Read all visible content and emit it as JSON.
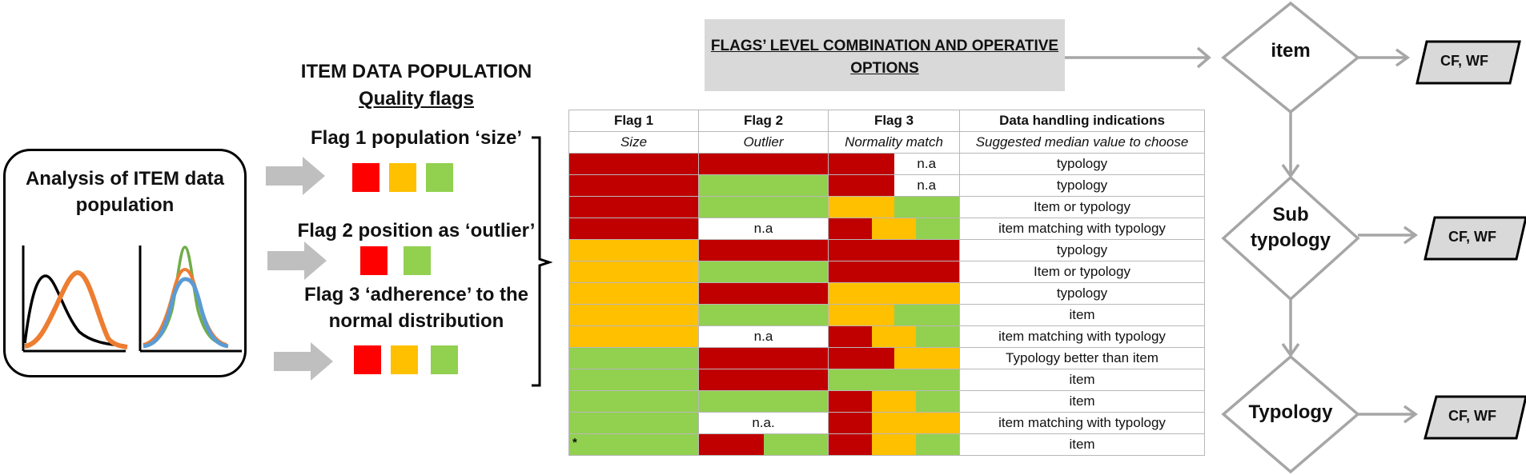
{
  "analysis": {
    "title": "Analysis of ITEM data population"
  },
  "population": {
    "title": "ITEM DATA POPULATION",
    "subtitle": "Quality flags",
    "flag1": {
      "label": "Flag 1 population ‘size’",
      "swatches": [
        "#ff0000",
        "#ffc000",
        "#92d050"
      ]
    },
    "flag2": {
      "label": "Flag 2 position as ‘outlier’",
      "swatches": [
        "#ff0000",
        "#92d050"
      ]
    },
    "flag3": {
      "label": "Flag 3 ‘adherence’ to the normal distribution",
      "swatches": [
        "#ff0000",
        "#ffc000",
        "#92d050"
      ]
    }
  },
  "banner": {
    "text": "FLAGS’ LEVEL COMBINATION AND OPERATIVE OPTIONS"
  },
  "colors": {
    "red": "#c00000",
    "yellow": "#ffc000",
    "green": "#92d050",
    "white": "#ffffff"
  },
  "table": {
    "headers": [
      "Flag 1",
      "Flag 2",
      "Flag 3",
      "Data handling indications"
    ],
    "subheaders": [
      "Size",
      "Outlier",
      "Normality match",
      "Suggested median value to choose"
    ],
    "rows": [
      {
        "f1": [
          "red"
        ],
        "f2": [
          "red"
        ],
        "f3": [
          "red",
          "white"
        ],
        "f3_text": "n.a",
        "handling": "typology"
      },
      {
        "f1": [
          "red"
        ],
        "f2": [
          "green"
        ],
        "f3": [
          "red",
          "white"
        ],
        "f3_text": "n.a",
        "handling": "typology"
      },
      {
        "f1": [
          "red"
        ],
        "f2": [
          "green"
        ],
        "f3": [
          "yellow",
          "green"
        ],
        "handling": "Item or typology"
      },
      {
        "f1": [
          "red"
        ],
        "f2": [
          "white"
        ],
        "f2_text": "n.a",
        "f3": [
          "red",
          "yellow",
          "green"
        ],
        "handling": "item matching with typology"
      },
      {
        "f1": [
          "yellow"
        ],
        "f2": [
          "red"
        ],
        "f3": [
          "red"
        ],
        "handling": "typology"
      },
      {
        "f1": [
          "yellow"
        ],
        "f2": [
          "green"
        ],
        "f3": [
          "red"
        ],
        "handling": "Item or typology"
      },
      {
        "f1": [
          "yellow"
        ],
        "f2": [
          "red"
        ],
        "f3": [
          "yellow"
        ],
        "handling": "typology"
      },
      {
        "f1": [
          "yellow"
        ],
        "f2": [
          "green"
        ],
        "f3": [
          "yellow",
          "green"
        ],
        "handling": "item"
      },
      {
        "f1": [
          "yellow"
        ],
        "f2": [
          "white"
        ],
        "f2_text": "n.a",
        "f3": [
          "red",
          "yellow",
          "green"
        ],
        "handling": "item matching with typology"
      },
      {
        "f1": [
          "green"
        ],
        "f2": [
          "red"
        ],
        "f3": [
          "red",
          "yellow"
        ],
        "handling": "Typology better than item"
      },
      {
        "f1": [
          "green"
        ],
        "f2": [
          "red"
        ],
        "f3": [
          "green"
        ],
        "handling": "item"
      },
      {
        "f1": [
          "green"
        ],
        "f2": [
          "green"
        ],
        "f3": [
          "red",
          "yellow",
          "green"
        ],
        "handling": "item"
      },
      {
        "f1": [
          "green"
        ],
        "f2": [
          "white"
        ],
        "f2_text": "n.a.",
        "f3": [
          "red",
          "yellow",
          "yellow"
        ],
        "handling": "item matching with typology"
      },
      {
        "f1": [
          "green"
        ],
        "f1_mark": "*",
        "f2": [
          "red",
          "green"
        ],
        "f3": [
          "red",
          "yellow",
          "green"
        ],
        "handling": "item"
      }
    ]
  },
  "flowchart": {
    "nodes": [
      {
        "label": "item",
        "output": "CF, WF"
      },
      {
        "label": "Sub typology",
        "output": "CF, WF"
      },
      {
        "label": "Typology",
        "output": "CF, WF"
      }
    ]
  }
}
